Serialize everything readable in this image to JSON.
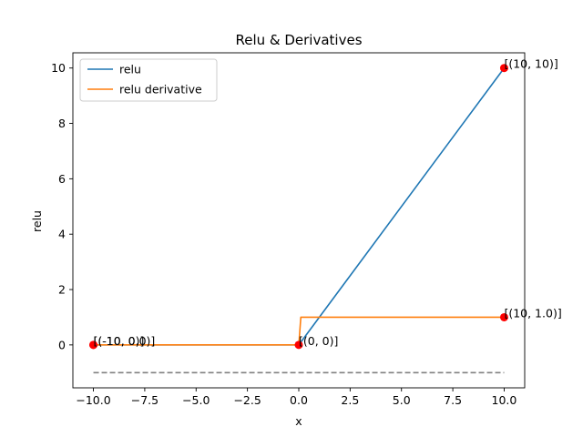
{
  "chart_data": {
    "type": "line",
    "title": "Relu & Derivatives",
    "xlabel": "x",
    "ylabel": "relu",
    "xlim": [
      -11.0,
      11.0
    ],
    "ylim": [
      -1.55,
      10.55
    ],
    "xticks": [
      -10.0,
      -7.5,
      -5.0,
      -2.5,
      0.0,
      2.5,
      5.0,
      7.5,
      10.0
    ],
    "xtick_labels": [
      "−10.0",
      "−7.5",
      "−5.0",
      "−2.5",
      "0.0",
      "2.5",
      "5.0",
      "7.5",
      "10.0"
    ],
    "yticks": [
      0,
      2,
      4,
      6,
      8,
      10
    ],
    "ytick_labels": [
      "0",
      "2",
      "4",
      "6",
      "8",
      "10"
    ],
    "grid": false,
    "legend_position": "top-left",
    "series": [
      {
        "name": "relu",
        "color": "#1f77b4",
        "x": [
          -10,
          0,
          10
        ],
        "y": [
          0,
          0,
          10
        ]
      },
      {
        "name": "relu derivative",
        "color": "#ff7f0e",
        "x": [
          -10,
          0,
          0.1,
          10
        ],
        "y": [
          0,
          0,
          1,
          1
        ]
      }
    ],
    "reference_line": {
      "style": "dashed",
      "color": "#808080",
      "x": [
        -10,
        10
      ],
      "y": [
        -1,
        -1
      ]
    },
    "points": [
      {
        "x": -10,
        "y": 0,
        "color": "#ff0000",
        "label": "[(-10, 0)]"
      },
      {
        "x": -10,
        "y": 0,
        "color": "#ff0000",
        "label": "[(-10, 0.0)]"
      },
      {
        "x": 0,
        "y": 0,
        "color": "#ff0000",
        "label": "[(0, 0)]"
      },
      {
        "x": 10,
        "y": 10,
        "color": "#ff0000",
        "label": "[(10, 10)]"
      },
      {
        "x": 10,
        "y": 1,
        "color": "#ff0000",
        "label": "[(10, 1.0)]"
      }
    ]
  }
}
